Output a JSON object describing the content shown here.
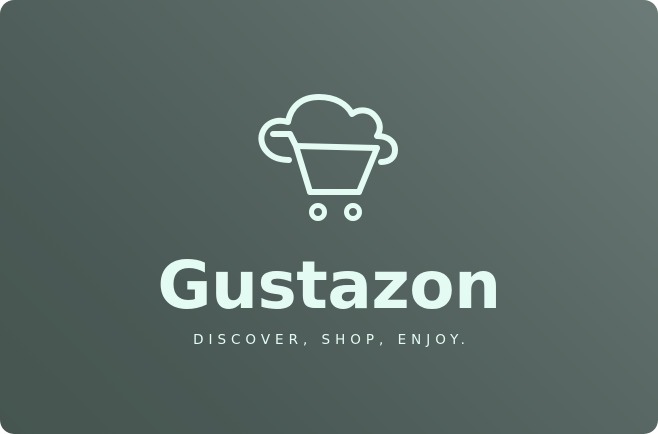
{
  "brand": {
    "name": "Gustazon",
    "tagline": "DISCOVER, SHOP, ENJOY."
  },
  "logo": {
    "icon": "cloud-shopping-cart-icon"
  },
  "colors": {
    "background_light": "#6c7b77",
    "background_dark": "#46554f",
    "foreground": "#e3fbf2"
  }
}
